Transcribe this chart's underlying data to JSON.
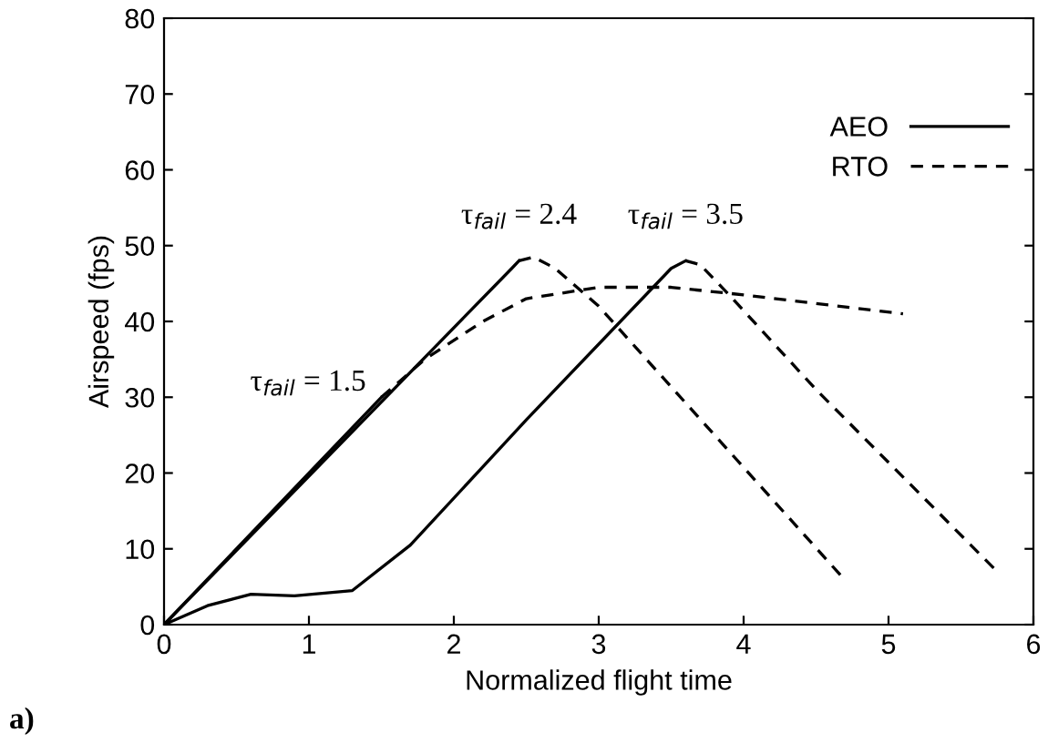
{
  "chart_data": {
    "type": "line",
    "xlabel": "Normalized flight time",
    "ylabel": "Airspeed (fps)",
    "xlim": [
      0,
      6
    ],
    "ylim": [
      0,
      80
    ],
    "xticks": [
      0,
      1,
      2,
      3,
      4,
      5,
      6
    ],
    "yticks": [
      0,
      10,
      20,
      30,
      40,
      50,
      60,
      70,
      80
    ],
    "grid": false,
    "legend": "top right",
    "marker": "none",
    "series": [
      {
        "name": "AEO",
        "color": "#000000",
        "line_style": "solid",
        "x": [
          0,
          1.5
        ],
        "values": [
          0,
          30
        ]
      },
      {
        "color": "#000000",
        "line_style": "solid",
        "x": [
          0,
          2.4,
          2.45
        ],
        "values": [
          0,
          47,
          48
        ]
      },
      {
        "color": "#000000",
        "line_style": "solid",
        "x": [
          0,
          0.3,
          0.6,
          0.9,
          1.3,
          1.7,
          2.5,
          3.5,
          3.6
        ],
        "values": [
          0,
          2.5,
          4,
          3.8,
          4.5,
          10.5,
          27,
          47,
          48
        ]
      },
      {
        "name": "RTO",
        "color": "#000000",
        "line_style": "dashed",
        "x": [
          1.5,
          1.8,
          2.2,
          2.5,
          3.0,
          3.5,
          4.0,
          5.1
        ],
        "values": [
          30,
          35,
          40,
          43,
          44.5,
          44.5,
          43.5,
          41
        ]
      },
      {
        "color": "#000000",
        "line_style": "dashed",
        "x": [
          2.45,
          2.55,
          2.7,
          3.0,
          4.67
        ],
        "values": [
          48,
          48.5,
          47,
          42,
          6.5
        ]
      },
      {
        "color": "#000000",
        "line_style": "dashed",
        "x": [
          3.6,
          3.7,
          3.9,
          4.5,
          5.75
        ],
        "values": [
          48,
          47.5,
          43.5,
          31,
          7
        ]
      }
    ],
    "annotations": [
      {
        "text": "τ$_{fail}$ = 1.5",
        "x": 1.5,
        "y": 30
      },
      {
        "text": "τ$_{fail}$ = 2.4",
        "x": 2.45,
        "y": 48
      },
      {
        "text": "τ$_{fail}$ = 3.5",
        "x": 3.6,
        "y": 48
      },
      "a)"
    ]
  }
}
